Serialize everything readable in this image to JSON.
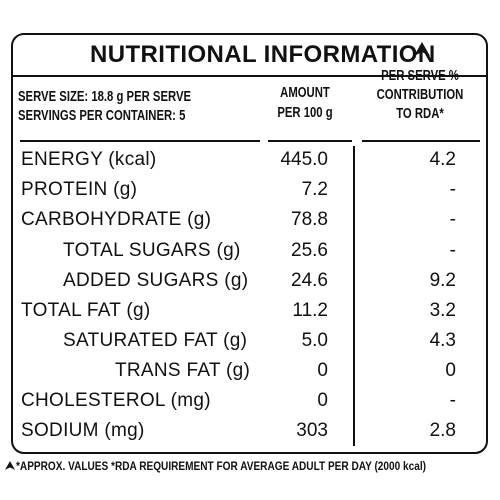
{
  "title": "NUTRITIONAL INFORMATION",
  "header": {
    "serve_size": "SERVE SIZE: 18.8 g PER SERVE",
    "servings": "SERVINGS PER CONTAINER: 5",
    "amount_col": [
      "AMOUNT",
      "PER 100 g"
    ],
    "rda_col": [
      "PER SERVE %",
      "CONTRIBUTION",
      "TO RDA*"
    ]
  },
  "rows": [
    {
      "nutrient": "ENERGY (kcal)",
      "per100": "445.0",
      "rda": "4.2"
    },
    {
      "nutrient": "PROTEIN (g)",
      "per100": "7.2",
      "rda": "-"
    },
    {
      "nutrient": "CARBOHYDRATE (g)",
      "per100": "78.8",
      "rda": "-"
    },
    {
      "nutrient": "TOTAL SUGARS (g)",
      "per100": "25.6",
      "rda": "-"
    },
    {
      "nutrient": "ADDED SUGARS (g)",
      "per100": "24.6",
      "rda": "9.2"
    },
    {
      "nutrient": "TOTAL FAT (g)",
      "per100": "11.2",
      "rda": "3.2"
    },
    {
      "nutrient": "SATURATED FAT (g)",
      "per100": "5.0",
      "rda": "4.3"
    },
    {
      "nutrient": "TRANS FAT (g)",
      "per100": "0",
      "rda": "0"
    },
    {
      "nutrient": "CHOLESTEROL (mg)",
      "per100": "0",
      "rda": "-"
    },
    {
      "nutrient": "SODIUM (mg)",
      "per100": "303",
      "rda": "2.8"
    }
  ],
  "footer": "*APPROX. VALUES *RDA REQUIREMENT FOR AVERAGE ADULT PER DAY (2000 kcal)",
  "icons": {
    "title_mark": "arrowhead-icon",
    "footer_mark": "arrowhead-icon"
  }
}
